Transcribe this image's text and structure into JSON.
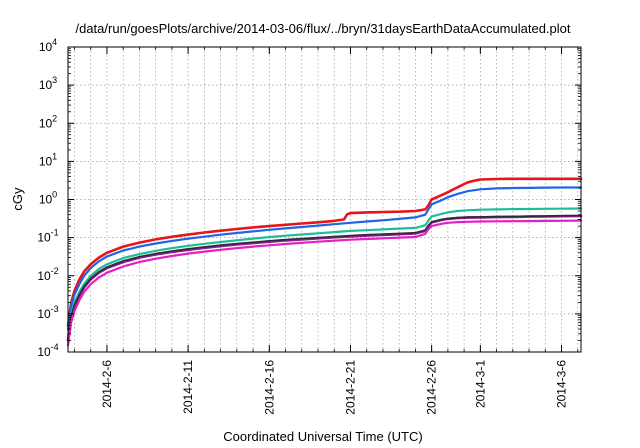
{
  "chart_data": {
    "type": "line",
    "title": "/data/run/goesPlots/archive/2014-03-06/flux/../bryn/31daysEarthDataAccumulated.plot",
    "xlabel": "Coordinated Universal Time (UTC)",
    "ylabel": "cGy",
    "y_scale": "log",
    "ylim": [
      0.0001,
      10000
    ],
    "xlim": [
      -0.4,
      31.2
    ],
    "x_unit": "days since 2014-02-04",
    "grid": true,
    "y_ticks": [
      {
        "base": "10",
        "exp": "-4",
        "value": 0.0001
      },
      {
        "base": "10",
        "exp": "-3",
        "value": 0.001
      },
      {
        "base": "10",
        "exp": "-2",
        "value": 0.01
      },
      {
        "base": "10",
        "exp": "-1",
        "value": 0.1
      },
      {
        "base": "10",
        "exp": "0",
        "value": 1
      },
      {
        "base": "10",
        "exp": "1",
        "value": 10
      },
      {
        "base": "10",
        "exp": "2",
        "value": 100
      },
      {
        "base": "10",
        "exp": "3",
        "value": 1000
      },
      {
        "base": "10",
        "exp": "4",
        "value": 10000
      }
    ],
    "x_ticks": [
      {
        "label": "2014-2-6",
        "value": 2
      },
      {
        "label": "2014-2-11",
        "value": 7
      },
      {
        "label": "2014-2-16",
        "value": 12
      },
      {
        "label": "2014-2-21",
        "value": 17
      },
      {
        "label": "2014-2-26",
        "value": 22
      },
      {
        "label": "2014-3-1",
        "value": 25
      },
      {
        "label": "2014-3-6",
        "value": 30
      }
    ],
    "series": [
      {
        "color": "#e8141b",
        "width": 2.6,
        "x": [
          -0.4,
          -0.2,
          0,
          0.3,
          0.6,
          1,
          1.5,
          2,
          3,
          4,
          5,
          6,
          7,
          8,
          9,
          10,
          11,
          12,
          13,
          14,
          15,
          16,
          16.6,
          16.8,
          17,
          18,
          19,
          20,
          21,
          21.6,
          21.8,
          22,
          22.6,
          23,
          23.4,
          23.8,
          24.2,
          24.6,
          25,
          26,
          27,
          28,
          29,
          30,
          31.2
        ],
        "y": [
          0.0005,
          0.002,
          0.004,
          0.008,
          0.013,
          0.02,
          0.03,
          0.04,
          0.058,
          0.074,
          0.09,
          0.105,
          0.12,
          0.136,
          0.152,
          0.168,
          0.185,
          0.2,
          0.217,
          0.234,
          0.252,
          0.275,
          0.3,
          0.41,
          0.44,
          0.46,
          0.47,
          0.48,
          0.5,
          0.55,
          0.7,
          1.0,
          1.3,
          1.55,
          1.9,
          2.3,
          2.8,
          3.1,
          3.35,
          3.45,
          3.5,
          3.5,
          3.5,
          3.5,
          3.5
        ]
      },
      {
        "color": "#1f66e5",
        "width": 2.2,
        "x": [
          -0.4,
          -0.2,
          0,
          0.3,
          0.6,
          1,
          1.5,
          2,
          3,
          4,
          5,
          6,
          7,
          8,
          9,
          10,
          11,
          12,
          13,
          14,
          15,
          16,
          17,
          18,
          19,
          20,
          21,
          21.6,
          21.8,
          22,
          22.6,
          23,
          23.6,
          24.2,
          25,
          26,
          27,
          28,
          29,
          30,
          31.2
        ],
        "y": [
          0.0004,
          0.0016,
          0.0032,
          0.006,
          0.01,
          0.016,
          0.024,
          0.032,
          0.046,
          0.058,
          0.07,
          0.082,
          0.094,
          0.106,
          0.119,
          0.132,
          0.146,
          0.16,
          0.175,
          0.19,
          0.207,
          0.225,
          0.245,
          0.265,
          0.285,
          0.31,
          0.34,
          0.4,
          0.55,
          0.75,
          0.95,
          1.15,
          1.4,
          1.65,
          1.85,
          1.95,
          2.0,
          2.02,
          2.05,
          2.06,
          2.07
        ]
      },
      {
        "color": "#1ebd98",
        "width": 2.2,
        "x": [
          -0.4,
          -0.2,
          0,
          0.3,
          0.6,
          1,
          1.5,
          2,
          3,
          4,
          5,
          6,
          7,
          8,
          9,
          10,
          11,
          12,
          13,
          14,
          15,
          16,
          17,
          18,
          19,
          20,
          21,
          21.6,
          21.8,
          22,
          22.6,
          23,
          23.6,
          24.2,
          25,
          26,
          27,
          28,
          29,
          30,
          31.2
        ],
        "y": [
          0.00025,
          0.001,
          0.002,
          0.0038,
          0.0062,
          0.01,
          0.015,
          0.02,
          0.029,
          0.037,
          0.045,
          0.053,
          0.061,
          0.069,
          0.077,
          0.085,
          0.094,
          0.103,
          0.112,
          0.121,
          0.13,
          0.14,
          0.15,
          0.157,
          0.164,
          0.172,
          0.18,
          0.21,
          0.28,
          0.36,
          0.42,
          0.46,
          0.5,
          0.52,
          0.54,
          0.55,
          0.56,
          0.565,
          0.57,
          0.575,
          0.58
        ]
      },
      {
        "color": "#8a1f8a",
        "width": 2.6,
        "x": [
          -0.4,
          -0.2,
          0,
          0.3,
          0.6,
          1,
          1.5,
          2,
          3,
          4,
          5,
          6,
          7,
          8,
          9,
          10,
          11,
          12,
          13,
          14,
          15,
          16,
          17,
          18,
          19,
          20,
          21,
          21.6,
          21.8,
          22,
          22.6,
          23,
          23.6,
          24.2,
          25,
          26,
          27,
          28,
          29,
          30,
          31.2
        ],
        "y": [
          0.0002,
          0.0008,
          0.0016,
          0.003,
          0.005,
          0.008,
          0.012,
          0.016,
          0.023,
          0.03,
          0.036,
          0.042,
          0.048,
          0.054,
          0.06,
          0.066,
          0.072,
          0.078,
          0.084,
          0.09,
          0.096,
          0.102,
          0.108,
          0.113,
          0.118,
          0.123,
          0.128,
          0.15,
          0.2,
          0.25,
          0.29,
          0.31,
          0.325,
          0.335,
          0.34,
          0.345,
          0.35,
          0.355,
          0.36,
          0.365,
          0.37
        ]
      },
      {
        "color": "#2b2b3a",
        "width": 1.6,
        "x": [
          -0.4,
          -0.2,
          0,
          0.3,
          0.6,
          1,
          1.5,
          2,
          3,
          4,
          5,
          6,
          7,
          8,
          9,
          10,
          11,
          12,
          13,
          14,
          15,
          16,
          17,
          18,
          19,
          20,
          21,
          21.6,
          21.8,
          22,
          22.6,
          23,
          23.6,
          24.2,
          25,
          26,
          27,
          28,
          29,
          30,
          31.2
        ],
        "y": [
          0.00021,
          0.00085,
          0.0017,
          0.0032,
          0.0053,
          0.0085,
          0.0127,
          0.017,
          0.0245,
          0.0318,
          0.038,
          0.0445,
          0.051,
          0.057,
          0.0635,
          0.07,
          0.076,
          0.0825,
          0.089,
          0.095,
          0.101,
          0.107,
          0.114,
          0.119,
          0.124,
          0.129,
          0.135,
          0.158,
          0.21,
          0.26,
          0.3,
          0.32,
          0.335,
          0.345,
          0.35,
          0.355,
          0.36,
          0.365,
          0.37,
          0.375,
          0.38
        ]
      },
      {
        "color": "#e61fc4",
        "width": 2.2,
        "x": [
          -0.4,
          -0.2,
          0,
          0.3,
          0.6,
          1,
          1.5,
          2,
          3,
          4,
          5,
          6,
          7,
          8,
          9,
          10,
          11,
          12,
          13,
          14,
          15,
          16,
          17,
          18,
          19,
          20,
          21,
          21.6,
          21.8,
          22,
          22.6,
          23,
          23.6,
          24.2,
          25,
          26,
          27,
          28,
          29,
          30,
          31.2
        ],
        "y": [
          0.00015,
          0.0006,
          0.0012,
          0.0023,
          0.0038,
          0.006,
          0.009,
          0.012,
          0.0175,
          0.023,
          0.028,
          0.033,
          0.038,
          0.043,
          0.048,
          0.053,
          0.058,
          0.063,
          0.068,
          0.073,
          0.078,
          0.083,
          0.088,
          0.092,
          0.096,
          0.1,
          0.104,
          0.125,
          0.165,
          0.2,
          0.23,
          0.245,
          0.255,
          0.26,
          0.265,
          0.268,
          0.27,
          0.272,
          0.275,
          0.277,
          0.28
        ]
      }
    ]
  }
}
